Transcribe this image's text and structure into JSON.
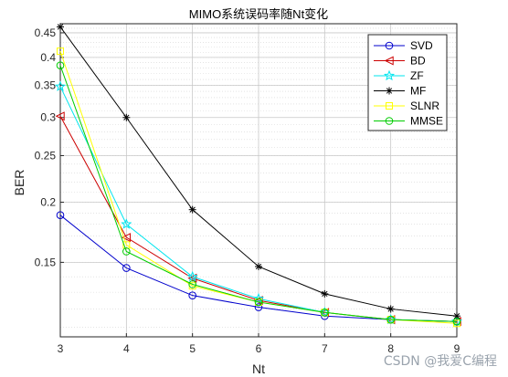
{
  "chart_data": {
    "type": "line",
    "title": "MIMO系统误码率随Nt变化",
    "xlabel": "Nt",
    "ylabel": "BER",
    "yscale": "log",
    "xlim": [
      3,
      9
    ],
    "ylim": [
      0.105,
      0.47
    ],
    "xticks": [
      3,
      4,
      5,
      6,
      7,
      8,
      9
    ],
    "yticks": [
      0.15,
      0.2,
      0.25,
      0.3,
      0.35,
      0.4,
      0.45
    ],
    "ytick_labels": [
      "0.15",
      "0.2",
      "0.25",
      "0.3",
      "0.35",
      "0.4",
      "0.45"
    ],
    "grid": true,
    "legend_position": "top-right",
    "x": [
      3,
      4,
      5,
      6,
      7,
      8,
      9
    ],
    "series": [
      {
        "name": "SVD",
        "color": "#0000cc",
        "marker": "circle",
        "values": [
          0.188,
          0.146,
          0.128,
          0.121,
          0.116,
          0.114,
          0.113
        ]
      },
      {
        "name": "BD",
        "color": "#cc0000",
        "marker": "triangle",
        "values": [
          0.302,
          0.169,
          0.139,
          0.125,
          0.118,
          0.114,
          0.113
        ]
      },
      {
        "name": "ZF",
        "color": "#00e5ee",
        "marker": "star",
        "values": [
          0.348,
          0.18,
          0.14,
          0.126,
          0.118,
          0.114,
          0.113
        ]
      },
      {
        "name": "MF",
        "color": "#000000",
        "marker": "asterisk",
        "values": [
          0.463,
          0.3,
          0.193,
          0.147,
          0.129,
          0.12,
          0.116
        ]
      },
      {
        "name": "SLNR",
        "color": "#ffff00",
        "marker": "square",
        "values": [
          0.412,
          0.163,
          0.134,
          0.124,
          0.118,
          0.114,
          0.112
        ]
      },
      {
        "name": "MMSE",
        "color": "#00cc00",
        "marker": "circle",
        "values": [
          0.385,
          0.158,
          0.135,
          0.124,
          0.118,
          0.114,
          0.113
        ]
      }
    ]
  },
  "watermark": "CSDN @我爱C编程"
}
